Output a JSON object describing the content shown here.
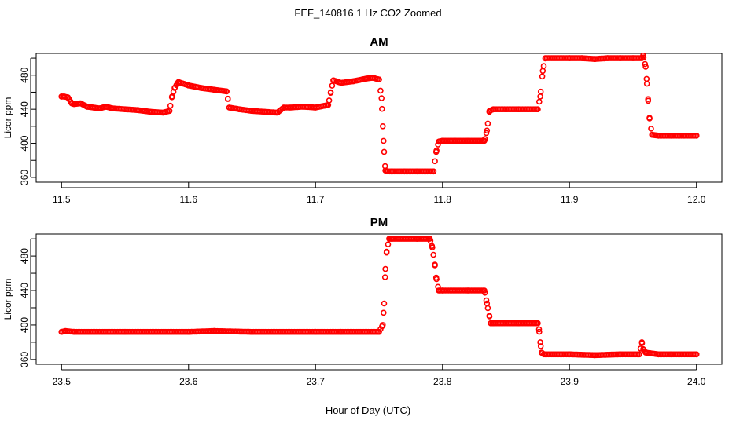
{
  "figure": {
    "title": "FEF_140816  1 Hz CO2 Zoomed",
    "xlabel": "Hour of Day (UTC)"
  },
  "colors": {
    "points": "#ff0000",
    "axes": "#000000"
  },
  "chart_data": [
    {
      "type": "scatter",
      "title": "AM",
      "xlabel": "Hour of Day (UTC)",
      "ylabel": "Licor ppm",
      "xlim": [
        11.5,
        12.0
      ],
      "ylim": [
        360,
        500
      ],
      "xticks": [
        "11.5",
        "11.6",
        "11.7",
        "11.8",
        "11.9",
        "12.0"
      ],
      "yticks": [
        "360",
        "400",
        "440",
        "480"
      ],
      "marker": "open-circle",
      "grid": false,
      "series": [
        {
          "x": [
            11.5,
            11.502,
            11.505,
            11.508,
            11.51,
            11.515,
            11.52,
            11.525,
            11.53,
            11.535,
            11.54,
            11.55,
            11.56,
            11.57,
            11.58,
            11.585,
            11.587,
            11.589,
            11.592,
            11.6,
            11.61,
            11.62,
            11.63,
            11.631,
            11.632,
            11.64,
            11.65,
            11.66,
            11.67,
            11.675,
            11.68,
            11.69,
            11.7,
            11.71,
            11.712,
            11.714,
            11.72,
            11.73,
            11.74,
            11.745,
            11.75,
            11.752,
            11.753,
            11.754,
            11.755,
            11.757,
            11.76,
            11.77,
            11.78,
            11.793,
            11.795,
            11.797,
            11.8,
            11.81,
            11.82,
            11.833,
            11.835,
            11.837,
            11.84,
            11.85,
            11.86,
            11.875,
            11.877,
            11.879,
            11.881,
            11.9,
            11.91,
            11.92,
            11.93,
            11.94,
            11.95,
            11.957,
            11.958,
            11.96,
            11.961,
            11.962,
            11.963,
            11.965,
            11.97,
            11.98,
            11.99,
            12.0
          ],
          "y": [
            455,
            455,
            454,
            447,
            446,
            447,
            443,
            442,
            441,
            443,
            441,
            440,
            439,
            437,
            436,
            438,
            455,
            465,
            472,
            468,
            465,
            463,
            461,
            452,
            442,
            440,
            438,
            437,
            436,
            442,
            442,
            443,
            442,
            445,
            460,
            474,
            471,
            473,
            476,
            477,
            475,
            453,
            420,
            390,
            368,
            367,
            367,
            367,
            367,
            367,
            390,
            402,
            403,
            403,
            403,
            403,
            415,
            438,
            440,
            440,
            440,
            440,
            455,
            485,
            500,
            500,
            500,
            499,
            500,
            500,
            500,
            500,
            503,
            490,
            470,
            450,
            430,
            410,
            409,
            409,
            409,
            409
          ]
        }
      ]
    },
    {
      "type": "scatter",
      "title": "PM",
      "xlabel": "Hour of Day (UTC)",
      "ylabel": "Licor ppm",
      "xlim": [
        23.5,
        24.0
      ],
      "ylim": [
        360,
        500
      ],
      "xticks": [
        "23.5",
        "23.6",
        "23.7",
        "23.8",
        "23.9",
        "24.0"
      ],
      "yticks": [
        "360",
        "400",
        "440",
        "480"
      ],
      "marker": "open-circle",
      "grid": false,
      "series": [
        {
          "x": [
            23.5,
            23.503,
            23.51,
            23.55,
            23.6,
            23.62,
            23.65,
            23.7,
            23.72,
            23.75,
            23.753,
            23.754,
            23.755,
            23.756,
            23.758,
            23.76,
            23.78,
            23.79,
            23.792,
            23.794,
            23.795,
            23.797,
            23.8,
            23.82,
            23.833,
            23.835,
            23.837,
            23.838,
            23.84,
            23.86,
            23.875,
            23.876,
            23.877,
            23.878,
            23.88,
            23.9,
            23.92,
            23.94,
            23.955,
            23.957,
            23.958,
            23.96,
            23.97,
            23.98,
            24.0
          ],
          "y": [
            392,
            393,
            392,
            392,
            392,
            393,
            392,
            392,
            392,
            392,
            400,
            425,
            465,
            485,
            500,
            500,
            500,
            500,
            490,
            470,
            455,
            440,
            440,
            440,
            440,
            425,
            410,
            402,
            402,
            402,
            402,
            395,
            380,
            368,
            366,
            366,
            365,
            366,
            366,
            380,
            372,
            368,
            366,
            366,
            366
          ]
        }
      ]
    }
  ]
}
